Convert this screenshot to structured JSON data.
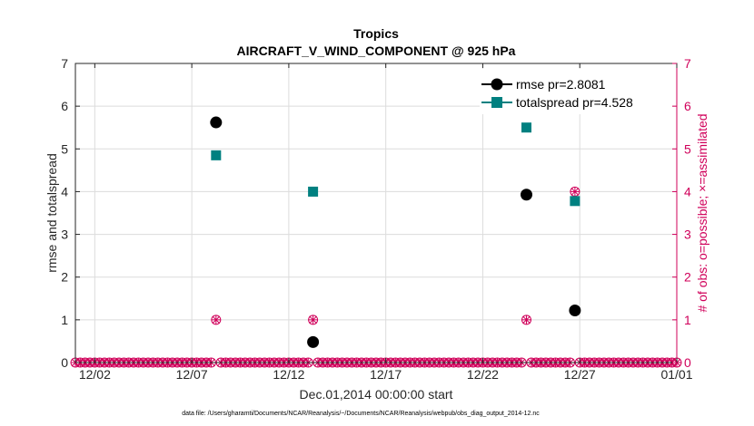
{
  "chart_data": {
    "type": "scatter",
    "title": "Tropics",
    "subtitle": "AIRCRAFT_V_WIND_COMPONENT @ 925 hPa",
    "xlabel": "Dec.01,2014 00:00:00 start",
    "ylabel_left": "rmse and totalspread",
    "ylabel_right": "# of obs: o=possible; ×=assimilated",
    "xlim": [
      0,
      31
    ],
    "ylim": [
      0,
      7
    ],
    "x_ticks": [
      {
        "x": 1,
        "label": "12/02"
      },
      {
        "x": 6,
        "label": "12/07"
      },
      {
        "x": 11,
        "label": "12/12"
      },
      {
        "x": 16,
        "label": "12/17"
      },
      {
        "x": 21,
        "label": "12/22"
      },
      {
        "x": 26,
        "label": "12/27"
      },
      {
        "x": 31,
        "label": "01/01"
      }
    ],
    "y_ticks": [
      "0",
      "1",
      "2",
      "3",
      "4",
      "5",
      "6",
      "7"
    ],
    "legend_position": "top-right",
    "grid": true,
    "series": [
      {
        "name": "rmse pr=2.8081",
        "marker": "circle",
        "color": "#000000",
        "points": [
          [
            7.25,
            5.62
          ],
          [
            12.25,
            0.48
          ],
          [
            23.25,
            3.93
          ],
          [
            25.75,
            1.22
          ]
        ]
      },
      {
        "name": "totalspread pr=4.528",
        "marker": "square",
        "color": "#008080",
        "points": [
          [
            7.25,
            4.85
          ],
          [
            12.25,
            4.0
          ],
          [
            23.25,
            5.5
          ],
          [
            25.75,
            3.78
          ]
        ]
      },
      {
        "name": "# of obs",
        "marker": "circle-x",
        "color": "#d0005a",
        "axis": "right",
        "points": [
          [
            7.25,
            1
          ],
          [
            12.25,
            1
          ],
          [
            23.25,
            1
          ],
          [
            25.75,
            4
          ]
        ]
      }
    ],
    "zero_marker_step": 0.25
  },
  "footer": {
    "data_file": "data file: /Users/gharamti/Documents/NCAR/Reanalysis/~/Documents/NCAR/Reanalysis/webpub/obs_diag_output_2014-12.nc"
  },
  "colors": {
    "axis": "#262626",
    "grid": "#dcdcdc",
    "right_axis": "#d0005a",
    "rmse": "#000000",
    "spread": "#008080"
  }
}
